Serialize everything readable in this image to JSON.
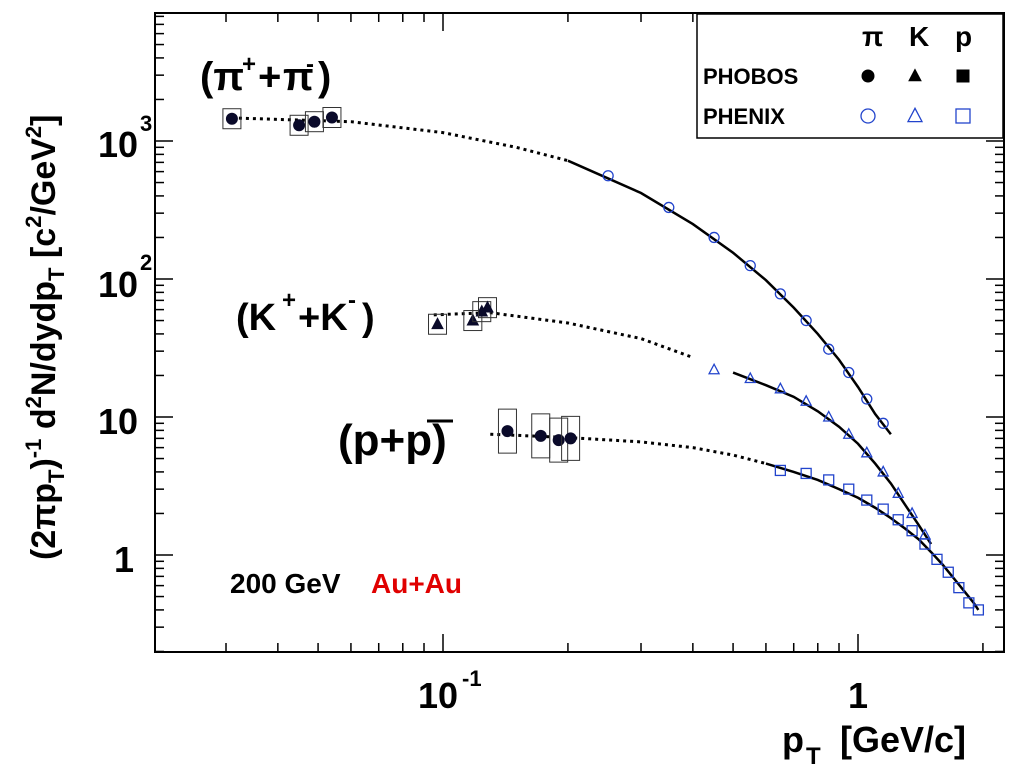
{
  "chart_data": {
    "type": "scatter",
    "x_scale": "log",
    "y_scale": "log",
    "xlim": [
      0.023,
      2.2
    ],
    "ylim": [
      0.15,
      8000
    ],
    "xlabel": "p_T [GeV/c]",
    "ylabel": "(2πp_T)^-1 d²N/dydp_T [c²/GeV²]",
    "x_ticklabels": [
      "10^-1",
      "1"
    ],
    "y_ticklabels": [
      "1",
      "10",
      "10^2",
      "10^3"
    ],
    "annotation": {
      "energy": "200 GeV",
      "system": "Au+Au",
      "system_color": "#e00000"
    },
    "legend": {
      "placement": "top-right",
      "columns": [
        "π",
        "K",
        "p"
      ],
      "rows": [
        {
          "label": "PHOBOS",
          "marker": "filled",
          "color": "#000000"
        },
        {
          "label": "PHENIX",
          "marker": "open",
          "color": "#2244cc"
        }
      ]
    },
    "groups": [
      {
        "label": "(π⁺+π⁻)",
        "label_parts": [
          "(π",
          "+",
          "+π",
          "-",
          ")"
        ],
        "marker": "circle",
        "phobos": [
          [
            0.031,
            1450
          ],
          [
            0.045,
            1300
          ],
          [
            0.049,
            1380
          ],
          [
            0.054,
            1480
          ]
        ],
        "phenix": [
          [
            0.25,
            560
          ],
          [
            0.35,
            330
          ],
          [
            0.45,
            200
          ],
          [
            0.55,
            125
          ],
          [
            0.65,
            78
          ],
          [
            0.75,
            50
          ],
          [
            0.85,
            31
          ],
          [
            0.95,
            21
          ],
          [
            1.05,
            13.5
          ],
          [
            1.15,
            9
          ]
        ],
        "fit": [
          [
            0.031,
            1470
          ],
          [
            0.06,
            1380
          ],
          [
            0.1,
            1150
          ],
          [
            0.15,
            900
          ],
          [
            0.2,
            720
          ],
          [
            0.3,
            420
          ],
          [
            0.4,
            250
          ],
          [
            0.5,
            155
          ],
          [
            0.6,
            98
          ],
          [
            0.7,
            62
          ],
          [
            0.8,
            40
          ],
          [
            0.9,
            26
          ],
          [
            1.0,
            16.5
          ],
          [
            1.1,
            10.5
          ],
          [
            1.2,
            7.5
          ]
        ]
      },
      {
        "label": "(K⁺+K⁻)",
        "label_parts": [
          "(K",
          "+",
          "+K",
          "-",
          ")"
        ],
        "marker": "triangle",
        "phobos": [
          [
            0.097,
            47
          ],
          [
            0.118,
            50
          ],
          [
            0.124,
            58
          ],
          [
            0.128,
            62
          ]
        ],
        "phenix": [
          [
            0.45,
            22
          ],
          [
            0.55,
            19
          ],
          [
            0.65,
            16
          ],
          [
            0.75,
            13
          ],
          [
            0.85,
            10
          ],
          [
            0.95,
            7.5
          ],
          [
            1.05,
            5.5
          ],
          [
            1.15,
            4
          ],
          [
            1.25,
            2.8
          ],
          [
            1.35,
            2
          ],
          [
            1.45,
            1.4
          ]
        ],
        "fit": [
          [
            0.095,
            55
          ],
          [
            0.13,
            57
          ],
          [
            0.2,
            48
          ],
          [
            0.3,
            37
          ],
          [
            0.4,
            27
          ],
          [
            0.5,
            21
          ],
          [
            0.6,
            17
          ],
          [
            0.7,
            14
          ],
          [
            0.8,
            11
          ],
          [
            0.9,
            8.5
          ],
          [
            1.0,
            6.4
          ],
          [
            1.1,
            4.6
          ],
          [
            1.2,
            3.3
          ],
          [
            1.3,
            2.3
          ],
          [
            1.4,
            1.65
          ],
          [
            1.5,
            1.2
          ]
        ]
      },
      {
        "label": "(p+p̄)",
        "label_parts": [
          "(p+",
          "p",
          ")"
        ],
        "marker": "square",
        "phobos": [
          [
            0.143,
            7.9
          ],
          [
            0.172,
            7.3
          ],
          [
            0.19,
            6.8
          ],
          [
            0.203,
            7.0
          ]
        ],
        "phenix": [
          [
            0.65,
            4.1
          ],
          [
            0.75,
            3.9
          ],
          [
            0.85,
            3.5
          ],
          [
            0.95,
            3.0
          ],
          [
            1.05,
            2.5
          ],
          [
            1.15,
            2.15
          ],
          [
            1.25,
            1.8
          ],
          [
            1.35,
            1.5
          ],
          [
            1.45,
            1.2
          ],
          [
            1.55,
            0.93
          ],
          [
            1.65,
            0.75
          ],
          [
            1.75,
            0.58
          ],
          [
            1.85,
            0.45
          ],
          [
            1.95,
            0.4
          ]
        ],
        "fit": [
          [
            0.13,
            7.5
          ],
          [
            0.2,
            7.1
          ],
          [
            0.3,
            6.6
          ],
          [
            0.4,
            6.0
          ],
          [
            0.5,
            5.3
          ],
          [
            0.6,
            4.6
          ],
          [
            0.7,
            4.0
          ],
          [
            0.8,
            3.5
          ],
          [
            0.9,
            3.0
          ],
          [
            1.0,
            2.6
          ],
          [
            1.1,
            2.2
          ],
          [
            1.2,
            1.85
          ],
          [
            1.3,
            1.55
          ],
          [
            1.4,
            1.3
          ],
          [
            1.5,
            1.05
          ],
          [
            1.6,
            0.85
          ],
          [
            1.7,
            0.68
          ],
          [
            1.8,
            0.55
          ],
          [
            1.9,
            0.45
          ],
          [
            1.95,
            0.4
          ]
        ]
      }
    ]
  }
}
